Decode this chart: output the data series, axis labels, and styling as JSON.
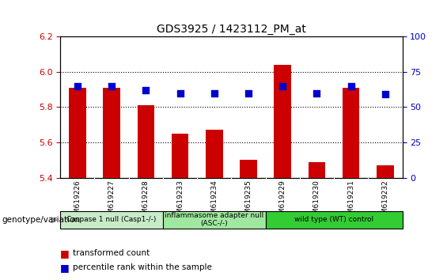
{
  "title": "GDS3925 / 1423112_PM_at",
  "samples": [
    "GSM619226",
    "GSM619227",
    "GSM619228",
    "GSM619233",
    "GSM619234",
    "GSM619235",
    "GSM619229",
    "GSM619230",
    "GSM619231",
    "GSM619232"
  ],
  "red_values": [
    5.91,
    5.91,
    5.81,
    5.65,
    5.67,
    5.5,
    6.04,
    5.49,
    5.91,
    5.47
  ],
  "blue_values": [
    65,
    65,
    62,
    60,
    60,
    60,
    65,
    60,
    65,
    59
  ],
  "ylim_left": [
    5.4,
    6.2
  ],
  "ylim_right": [
    0,
    100
  ],
  "yticks_left": [
    5.4,
    5.6,
    5.8,
    6.0,
    6.2
  ],
  "yticks_right": [
    0,
    25,
    50,
    75,
    100
  ],
  "groups": [
    {
      "label": "Caspase 1 null (Casp1-/-)",
      "indices": [
        0,
        1,
        2
      ],
      "color": "#c8ebc8"
    },
    {
      "label": "inflammasome adapter null\n(ASC-/-)",
      "indices": [
        3,
        4,
        5
      ],
      "color": "#a0e8a0"
    },
    {
      "label": "wild type (WT) control",
      "indices": [
        6,
        7,
        8,
        9
      ],
      "color": "#33cc33"
    }
  ],
  "bar_color": "#cc0000",
  "dot_color": "#0000cc",
  "bar_width": 0.5,
  "dot_size": 40,
  "legend_items": [
    {
      "label": "transformed count",
      "color": "#cc0000"
    },
    {
      "label": "percentile rank within the sample",
      "color": "#0000cc"
    }
  ],
  "background_color": "#ffffff",
  "plot_bg_color": "#ffffff",
  "tick_area_color": "#d0d0d0",
  "grid_color": "#000000",
  "left_tick_color": "#cc0000",
  "right_tick_color": "#0000cc",
  "genotype_label": "genotype/variation"
}
